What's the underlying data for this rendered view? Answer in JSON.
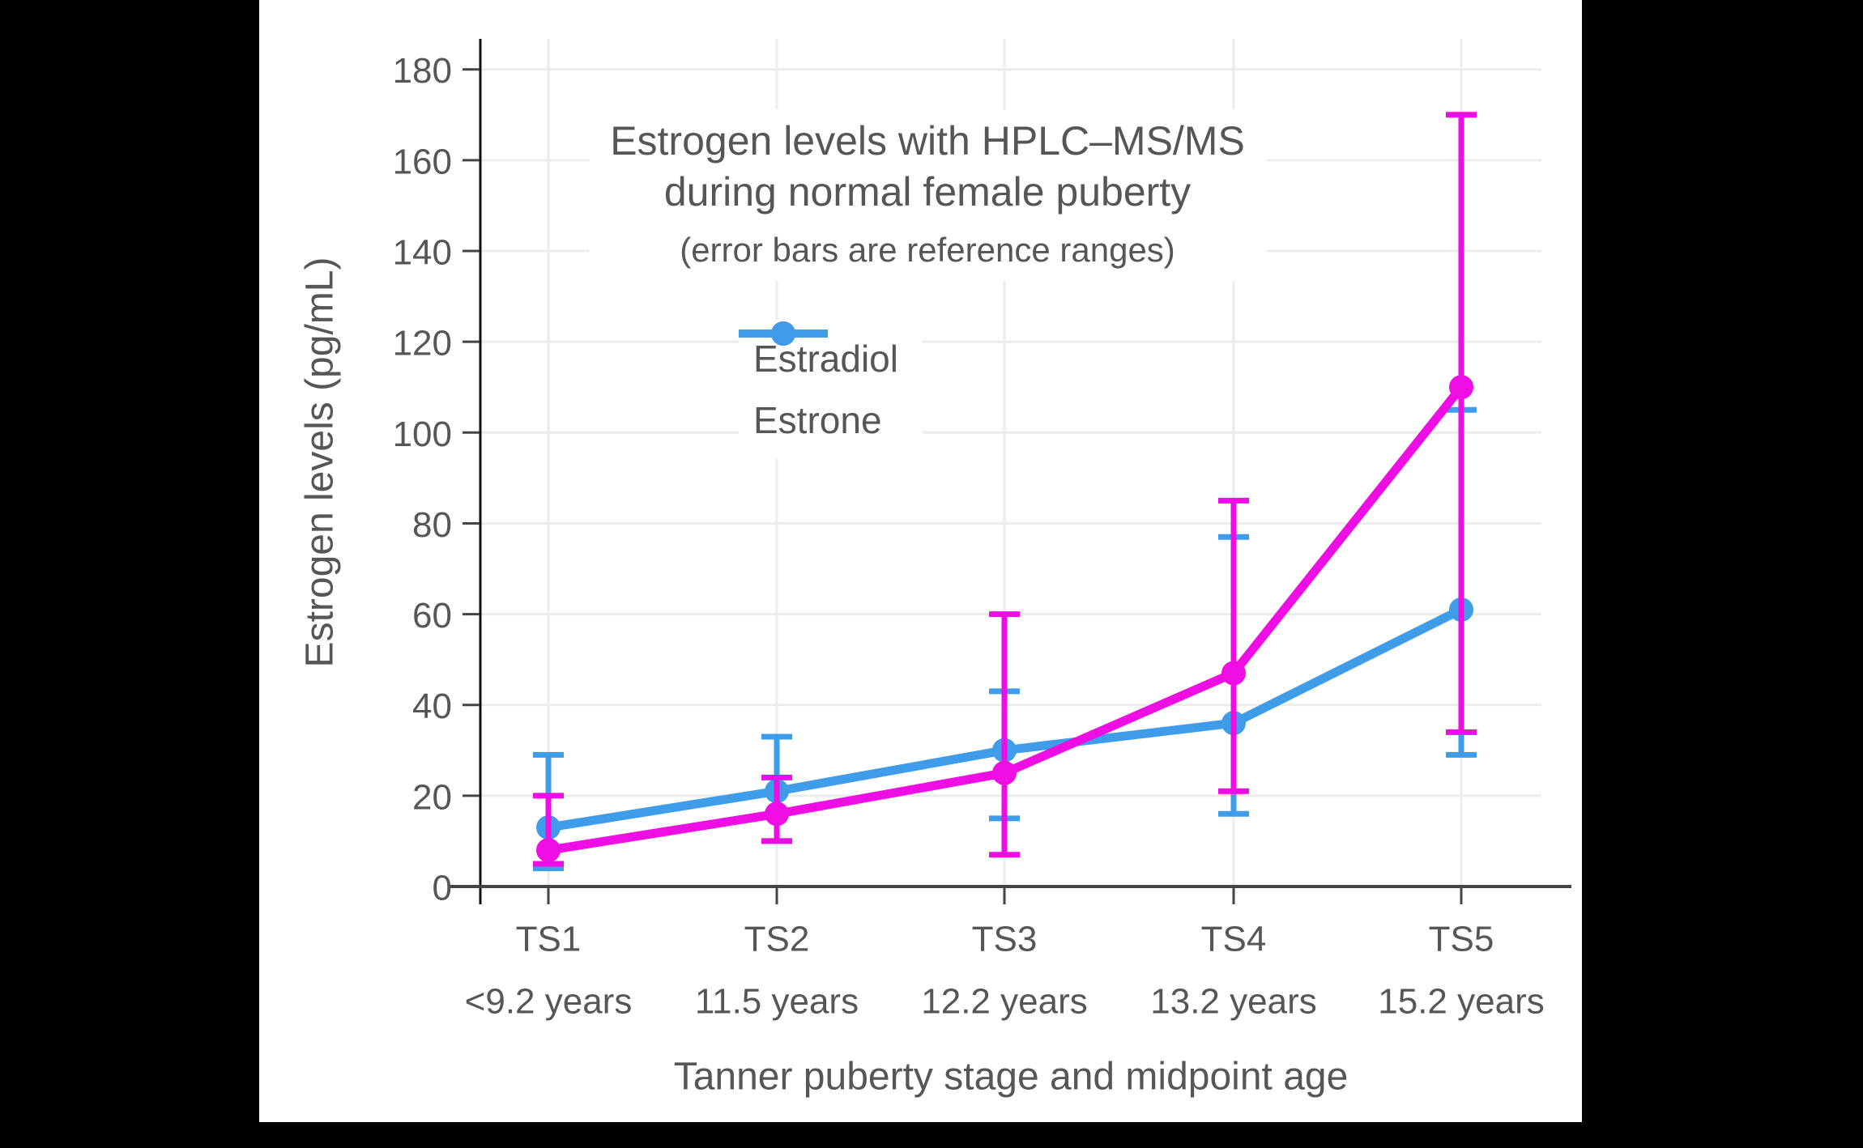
{
  "window": {
    "background": "#000000",
    "panel_background": "#ffffff"
  },
  "title": {
    "line1": "Estrogen levels with HPLC–MS/MS",
    "line2": "during normal female puberty",
    "subtitle": "(error bars are reference ranges)"
  },
  "legend": {
    "items": [
      {
        "label": "Estradiol",
        "color": "#ee0de2"
      },
      {
        "label": "Estrone",
        "color": "#3e9ce9"
      }
    ]
  },
  "colors": {
    "grid": "#ececec",
    "y_axis_line": "#111111",
    "x_axis_line": "#444444",
    "tick": "#444444",
    "text": "#565656"
  },
  "chart_data": {
    "type": "line",
    "title": "Estrogen levels with HPLC–MS/MS during normal female puberty",
    "subtitle": "(error bars are reference ranges)",
    "xlabel": "Tanner puberty stage and midpoint age",
    "ylabel": "Estrogen levels (pg/mL)",
    "ylim": [
      0,
      180
    ],
    "yticks": [
      0,
      20,
      40,
      60,
      80,
      100,
      120,
      140,
      160,
      180
    ],
    "grid": true,
    "legend_position": "inside-upper-center",
    "error_bars": "reference ranges",
    "categories": [
      "TS1",
      "TS2",
      "TS3",
      "TS4",
      "TS5"
    ],
    "category_sublabels": [
      "<9.2 years",
      "11.5 years",
      "12.2 years",
      "13.2 years",
      "15.2 years"
    ],
    "series": [
      {
        "name": "Estradiol",
        "color": "#ee0de2",
        "values": [
          8,
          16,
          25,
          47,
          110
        ],
        "range_low": [
          5,
          10,
          7,
          21,
          34
        ],
        "range_high": [
          20,
          24,
          60,
          85,
          170
        ]
      },
      {
        "name": "Estrone",
        "color": "#3e9ce9",
        "values": [
          13,
          21,
          30,
          36,
          61
        ],
        "range_low": [
          4,
          10,
          15,
          16,
          29
        ],
        "range_high": [
          29,
          33,
          43,
          77,
          105
        ]
      }
    ]
  }
}
